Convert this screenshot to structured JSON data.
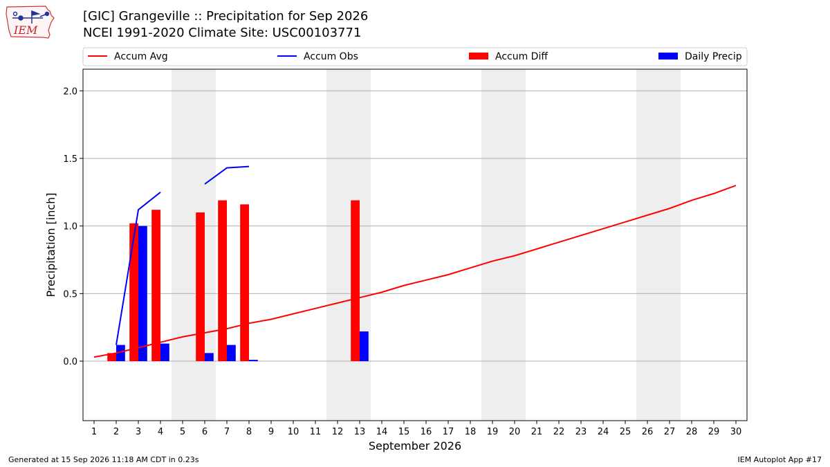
{
  "header": {
    "title": "[GIC] Grangeville :: Precipitation for Sep 2026",
    "subtitle": "NCEI 1991-2020 Climate Site: USC00103771",
    "logo_text": "IEM"
  },
  "footer": {
    "left": "Generated at 15 Sep 2026 11:18 AM CDT in 0.23s",
    "right": "IEM Autoplot App #17"
  },
  "colors": {
    "accum_avg": "#ff0000",
    "accum_obs": "#0000ff",
    "accum_diff": "#ff0000",
    "daily_precip": "#0000ff",
    "weekend_shade": "#eeeeee",
    "grid": "#b0b0b0"
  },
  "chart_data": {
    "type": "bar",
    "title": "[GIC] Grangeville :: Precipitation for Sep 2026",
    "xlabel": "September 2026",
    "ylabel": "Precipitation [inch]",
    "xlim": [
      0.5,
      30.5
    ],
    "ylim": [
      -0.44,
      2.16
    ],
    "yticks": [
      0.0,
      0.5,
      1.0,
      1.5,
      2.0
    ],
    "ytick_labels": [
      "0.0",
      "0.5",
      "1.0",
      "1.5",
      "2.0"
    ],
    "xticks": [
      1,
      2,
      3,
      4,
      5,
      6,
      7,
      8,
      9,
      10,
      11,
      12,
      13,
      14,
      15,
      16,
      17,
      18,
      19,
      20,
      21,
      22,
      23,
      24,
      25,
      26,
      27,
      28,
      29,
      30
    ],
    "xtick_labels": [
      "1",
      "2",
      "3",
      "4",
      "5",
      "6",
      "7",
      "8",
      "9",
      "10",
      "11",
      "12",
      "13",
      "14",
      "15",
      "16",
      "17",
      "18",
      "19",
      "20",
      "21",
      "22",
      "23",
      "24",
      "25",
      "26",
      "27",
      "28",
      "29",
      "30"
    ],
    "grid": "horizontal",
    "legend_position": "top",
    "weekend_shading": [
      [
        5,
        6
      ],
      [
        12,
        13
      ],
      [
        19,
        20
      ],
      [
        26,
        27
      ]
    ],
    "series": [
      {
        "name": "Accum Avg",
        "type": "line",
        "x": [
          1,
          2,
          3,
          4,
          5,
          6,
          7,
          8,
          9,
          10,
          11,
          12,
          13,
          14,
          15,
          16,
          17,
          18,
          19,
          20,
          21,
          22,
          23,
          24,
          25,
          26,
          27,
          28,
          29,
          30
        ],
        "values": [
          0.03,
          0.06,
          0.1,
          0.14,
          0.18,
          0.21,
          0.24,
          0.28,
          0.31,
          0.35,
          0.39,
          0.43,
          0.47,
          0.51,
          0.56,
          0.6,
          0.64,
          0.69,
          0.74,
          0.78,
          0.83,
          0.88,
          0.93,
          0.98,
          1.03,
          1.08,
          1.13,
          1.19,
          1.24,
          1.3
        ]
      },
      {
        "name": "Accum Obs",
        "type": "line",
        "segments": [
          {
            "x": [
              2,
              3,
              4
            ],
            "values": [
              0.12,
              1.12,
              1.25
            ]
          },
          {
            "x": [
              6,
              7,
              8
            ],
            "values": [
              1.31,
              1.43,
              1.44
            ]
          }
        ]
      },
      {
        "name": "Accum Diff",
        "type": "bar",
        "x": [
          2,
          3,
          4,
          6,
          7,
          8,
          13
        ],
        "values": [
          0.06,
          1.02,
          1.12,
          1.1,
          1.19,
          1.16,
          1.19
        ]
      },
      {
        "name": "Daily Precip",
        "type": "bar",
        "x": [
          2,
          3,
          4,
          6,
          7,
          8,
          13
        ],
        "values": [
          0.12,
          1.0,
          0.13,
          0.06,
          0.12,
          0.01,
          0.22
        ]
      }
    ]
  }
}
